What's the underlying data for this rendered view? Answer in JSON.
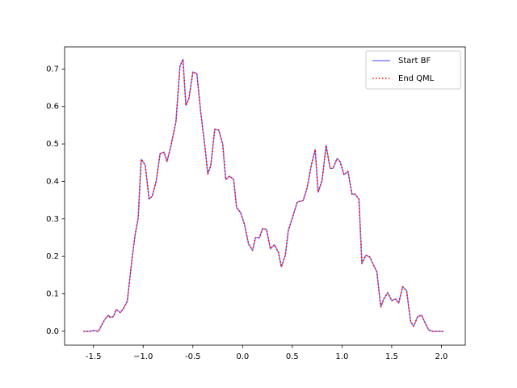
{
  "chart_data": {
    "type": "line",
    "x": [
      -1.6,
      -1.54,
      -1.5,
      -1.45,
      -1.39,
      -1.35,
      -1.33,
      -1.3,
      -1.27,
      -1.23,
      -1.2,
      -1.16,
      -1.11,
      -1.08,
      -1.05,
      -1.02,
      -0.98,
      -0.94,
      -0.91,
      -0.87,
      -0.83,
      -0.79,
      -0.76,
      -0.72,
      -0.67,
      -0.63,
      -0.6,
      -0.57,
      -0.54,
      -0.5,
      -0.46,
      -0.42,
      -0.38,
      -0.35,
      -0.32,
      -0.28,
      -0.24,
      -0.2,
      -0.17,
      -0.13,
      -0.09,
      -0.06,
      -0.02,
      0.02,
      0.06,
      0.1,
      0.13,
      0.17,
      0.2,
      0.24,
      0.28,
      0.32,
      0.36,
      0.39,
      0.43,
      0.46,
      0.5,
      0.55,
      0.61,
      0.65,
      0.69,
      0.73,
      0.76,
      0.8,
      0.84,
      0.88,
      0.91,
      0.95,
      0.98,
      1.02,
      1.06,
      1.1,
      1.13,
      1.17,
      1.2,
      1.24,
      1.28,
      1.32,
      1.35,
      1.39,
      1.42,
      1.46,
      1.5,
      1.54,
      1.57,
      1.61,
      1.65,
      1.69,
      1.72,
      1.76,
      1.8,
      1.83,
      1.87,
      1.91,
      1.95,
      2.0,
      2.02
    ],
    "series": [
      {
        "name": "Start BF",
        "color": "#7f7fff",
        "linestyle": "solid",
        "values": [
          0,
          0,
          0.002,
          0,
          0.03,
          0.043,
          0.037,
          0.039,
          0.058,
          0.05,
          0.06,
          0.08,
          0.198,
          0.259,
          0.302,
          0.459,
          0.444,
          0.353,
          0.36,
          0.399,
          0.474,
          0.478,
          0.453,
          0.496,
          0.56,
          0.707,
          0.726,
          0.603,
          0.621,
          0.692,
          0.688,
          0.582,
          0.496,
          0.42,
          0.442,
          0.539,
          0.537,
          0.5,
          0.405,
          0.414,
          0.405,
          0.33,
          0.317,
          0.284,
          0.233,
          0.216,
          0.25,
          0.25,
          0.274,
          0.272,
          0.22,
          0.231,
          0.211,
          0.172,
          0.203,
          0.269,
          0.302,
          0.345,
          0.349,
          0.384,
          0.442,
          0.485,
          0.371,
          0.403,
          0.496,
          0.435,
          0.435,
          0.461,
          0.453,
          0.418,
          0.427,
          0.366,
          0.366,
          0.353,
          0.181,
          0.203,
          0.198,
          0.175,
          0.159,
          0.065,
          0.086,
          0.103,
          0.082,
          0.086,
          0.075,
          0.119,
          0.108,
          0.026,
          0.013,
          0.039,
          0.043,
          0.026,
          0.004,
          0,
          0,
          0,
          0
        ]
      },
      {
        "name": "End QML",
        "color": "#ff0000",
        "linestyle": "dotted",
        "values": [
          0,
          0,
          0.002,
          0,
          0.03,
          0.043,
          0.037,
          0.039,
          0.058,
          0.05,
          0.06,
          0.08,
          0.198,
          0.259,
          0.302,
          0.459,
          0.444,
          0.353,
          0.36,
          0.399,
          0.474,
          0.478,
          0.453,
          0.496,
          0.56,
          0.707,
          0.726,
          0.603,
          0.621,
          0.692,
          0.688,
          0.582,
          0.496,
          0.42,
          0.442,
          0.539,
          0.537,
          0.5,
          0.405,
          0.414,
          0.405,
          0.33,
          0.317,
          0.284,
          0.233,
          0.216,
          0.25,
          0.25,
          0.274,
          0.272,
          0.22,
          0.231,
          0.211,
          0.172,
          0.203,
          0.269,
          0.302,
          0.345,
          0.349,
          0.384,
          0.442,
          0.485,
          0.371,
          0.403,
          0.496,
          0.435,
          0.435,
          0.461,
          0.453,
          0.418,
          0.427,
          0.366,
          0.366,
          0.353,
          0.181,
          0.203,
          0.198,
          0.175,
          0.159,
          0.065,
          0.086,
          0.103,
          0.082,
          0.086,
          0.075,
          0.119,
          0.108,
          0.026,
          0.013,
          0.039,
          0.043,
          0.026,
          0.004,
          0,
          0,
          0,
          0
        ]
      }
    ],
    "xlim": [
      -1.79,
      2.24
    ],
    "ylim": [
      -0.037,
      0.759
    ],
    "xticks": [
      -1.5,
      {
        "value": -1.0,
        "label": "−1.0"
      },
      -0.5,
      {
        "value": 0.0,
        "label": "0.0"
      },
      0.5,
      {
        "value": 1.0,
        "label": "1.0"
      },
      1.5,
      {
        "value": 2.0,
        "label": "2.0"
      }
    ],
    "yticks": [
      {
        "value": 0.0,
        "label": "0.0"
      },
      0.1,
      0.2,
      0.3,
      0.4,
      0.5,
      0.6,
      0.7
    ],
    "grid": false,
    "legend": "upper right"
  }
}
